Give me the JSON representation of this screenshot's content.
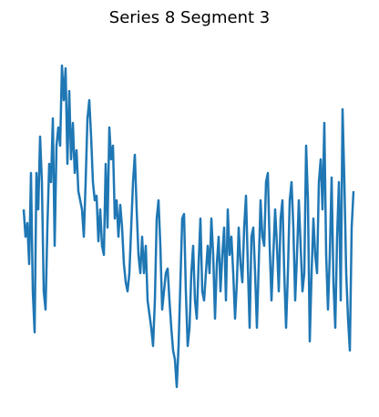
{
  "chart_data": {
    "type": "line",
    "title": "Series 8 Segment 3",
    "color": "#1f77b4",
    "ylim": [
      0,
      3.8
    ],
    "values": [
      2.1,
      1.8,
      1.95,
      1.5,
      2.5,
      1.2,
      0.75,
      2.5,
      2.1,
      2.9,
      2.4,
      1.2,
      1.0,
      1.9,
      2.6,
      2.4,
      3.1,
      1.7,
      2.8,
      3.0,
      2.8,
      3.68,
      3.3,
      3.65,
      2.6,
      3.4,
      2.65,
      3.05,
      2.5,
      2.75,
      2.3,
      2.2,
      2.1,
      1.8,
      2.4,
      3.1,
      3.3,
      2.9,
      2.4,
      2.2,
      2.25,
      1.75,
      2.1,
      1.7,
      1.6,
      2.6,
      1.9,
      3.0,
      2.65,
      2.8,
      2.0,
      2.2,
      1.8,
      2.15,
      1.9,
      1.5,
      1.3,
      1.2,
      1.4,
      1.9,
      2.4,
      2.7,
      2.1,
      1.6,
      1.4,
      1.8,
      1.4,
      1.7,
      1.1,
      0.95,
      0.8,
      0.6,
      1.1,
      2.0,
      2.2,
      1.7,
      1.0,
      1.2,
      1.4,
      1.45,
      1.1,
      0.8,
      0.55,
      0.45,
      0.15,
      0.6,
      1.3,
      2.0,
      2.05,
      1.2,
      0.6,
      0.8,
      1.4,
      1.7,
      1.1,
      0.9,
      1.5,
      2.0,
      1.2,
      1.1,
      1.4,
      1.7,
      1.4,
      2.0,
      1.6,
      0.9,
      1.5,
      1.8,
      1.2,
      1.6,
      1.9,
      1.1,
      2.1,
      1.6,
      1.8,
      1.4,
      0.9,
      1.3,
      1.9,
      1.5,
      1.3,
      1.9,
      2.25,
      1.5,
      0.8,
      1.8,
      1.9,
      1.4,
      0.8,
      1.5,
      2.2,
      1.8,
      1.7,
      2.4,
      2.5,
      1.7,
      1.1,
      1.6,
      2.1,
      1.7,
      1.2,
      2.0,
      2.2,
      1.4,
      0.8,
      1.4,
      2.2,
      2.4,
      1.9,
      1.1,
      1.6,
      2.2,
      1.7,
      1.2,
      1.4,
      2.8,
      2.2,
      0.65,
      1.4,
      2.0,
      1.6,
      1.4,
      2.4,
      2.65,
      2.1,
      3.05,
      1.6,
      1.0,
      1.6,
      2.45,
      1.3,
      0.8,
      1.8,
      2.4,
      1.1,
      3.2,
      2.4,
      1.4,
      0.9,
      0.55,
      1.9,
      2.3
    ]
  }
}
